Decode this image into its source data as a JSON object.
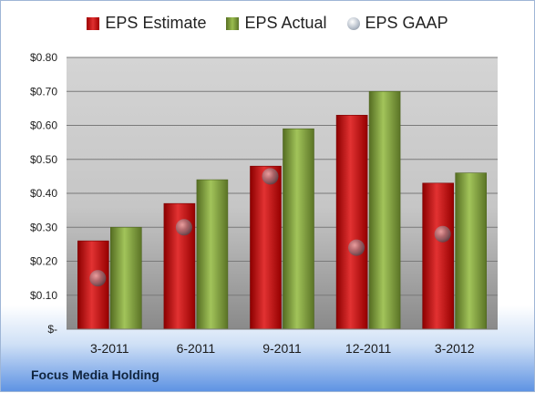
{
  "company": "Focus Media Holding",
  "chart_data": {
    "type": "bar",
    "categories": [
      "3-2011",
      "6-2011",
      "9-2011",
      "12-2011",
      "3-2012"
    ],
    "series": [
      {
        "name": "EPS Estimate",
        "type": "bar",
        "color": "#c81c1c",
        "values": [
          0.26,
          0.37,
          0.48,
          0.63,
          0.43
        ]
      },
      {
        "name": "EPS Actual",
        "type": "bar",
        "color": "#8aad45",
        "values": [
          0.3,
          0.44,
          0.59,
          0.7,
          0.46
        ]
      },
      {
        "name": "EPS GAAP",
        "type": "scatter",
        "color": "#aab2bd",
        "values": [
          0.15,
          0.3,
          0.45,
          0.24,
          0.28
        ]
      }
    ],
    "yticks": [
      "$-",
      "$0.10",
      "$0.20",
      "$0.30",
      "$0.40",
      "$0.50",
      "$0.60",
      "$0.70",
      "$0.80"
    ],
    "ylim": [
      0,
      0.8
    ],
    "grid": true,
    "legend_position": "top-center"
  }
}
